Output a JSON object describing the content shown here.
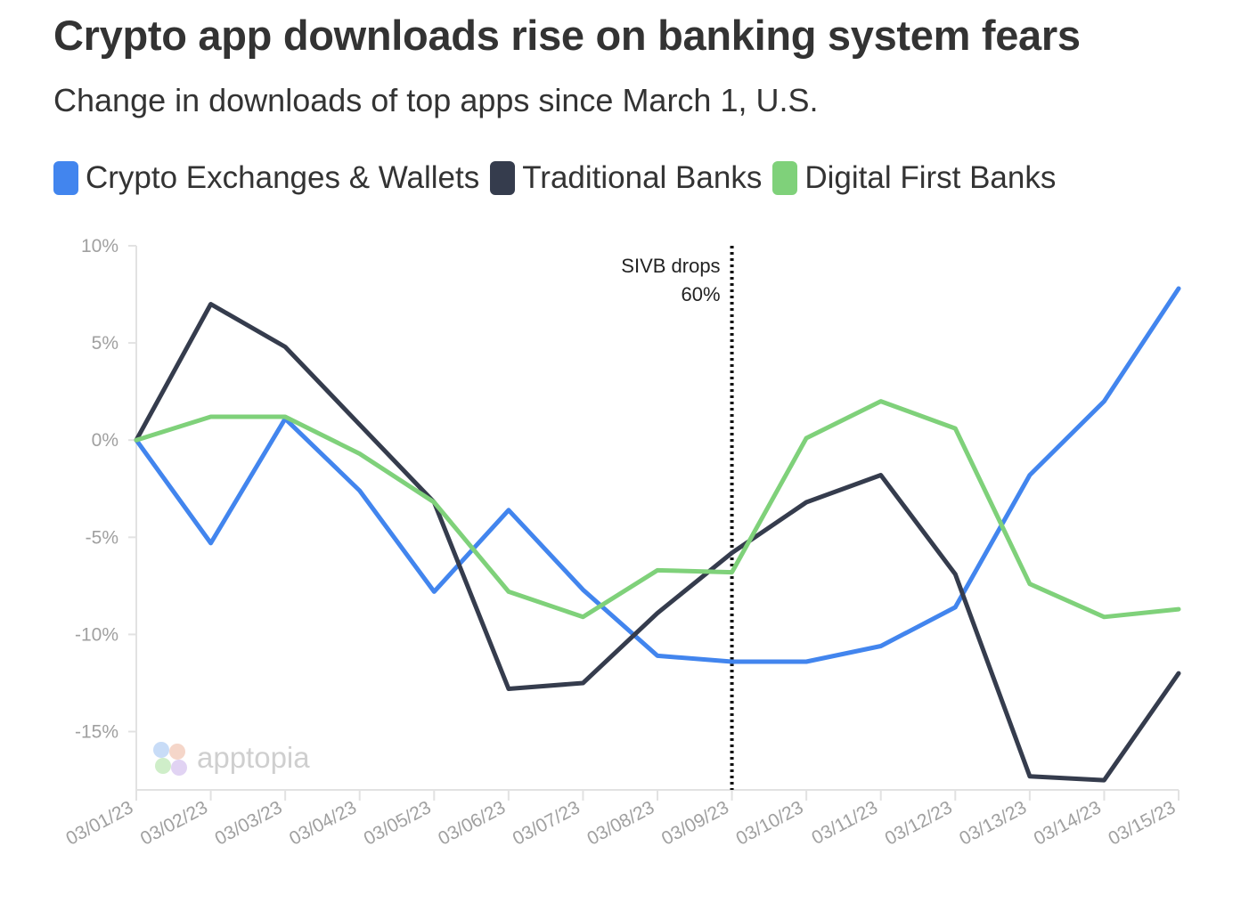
{
  "header": {
    "title": "Crypto app downloads rise on banking system fears",
    "subtitle": "Change in downloads of top apps since March 1, U.S."
  },
  "watermark": {
    "text": "apptopia",
    "icon": "apptopia-logo-icon"
  },
  "colors": {
    "crypto": "#4285ee",
    "traditional": "#353c4d",
    "digital": "#7fd17a",
    "axis": "#e2e2e2",
    "marker": "#111111"
  },
  "chart_data": {
    "type": "line",
    "title": "Crypto app downloads rise on banking system fears",
    "subtitle": "Change in downloads of top apps since March 1, U.S.",
    "x": [
      "03/01/23",
      "03/02/23",
      "03/03/23",
      "03/04/23",
      "03/05/23",
      "03/06/23",
      "03/07/23",
      "03/08/23",
      "03/09/23",
      "03/10/23",
      "03/11/23",
      "03/12/23",
      "03/13/23",
      "03/14/23",
      "03/15/23"
    ],
    "y_ticks": [
      10,
      5,
      0,
      -5,
      -10,
      -15
    ],
    "y_tick_labels": [
      "10%",
      "5%",
      "0%",
      "-5%",
      "-10%",
      "-15%"
    ],
    "ylim": [
      -18,
      10
    ],
    "ylabel": "",
    "xlabel": "",
    "legend_position": "top-left",
    "grid": false,
    "series": [
      {
        "name": "Crypto Exchanges & Wallets",
        "color": "#4285ee",
        "values": [
          0,
          -5.3,
          1.1,
          -2.6,
          -7.8,
          -3.6,
          -7.7,
          -11.1,
          -11.4,
          -11.4,
          -10.6,
          -8.6,
          -1.8,
          2.0,
          7.8
        ]
      },
      {
        "name": "Traditional Banks",
        "color": "#353c4d",
        "values": [
          0,
          7.0,
          4.8,
          0.8,
          -3.2,
          -12.8,
          -12.5,
          -8.9,
          -5.8,
          -3.2,
          -1.8,
          -6.9,
          -17.3,
          -17.5,
          -12.0
        ]
      },
      {
        "name": "Digital First Banks",
        "color": "#7fd17a",
        "values": [
          0,
          1.2,
          1.2,
          -0.7,
          -3.2,
          -7.8,
          -9.1,
          -6.7,
          -6.8,
          0.1,
          2.0,
          0.6,
          -7.4,
          -9.1,
          -8.7
        ]
      }
    ],
    "annotations": [
      {
        "x": "03/09/23",
        "lines": [
          "SIVB drops",
          "60%"
        ]
      }
    ]
  }
}
